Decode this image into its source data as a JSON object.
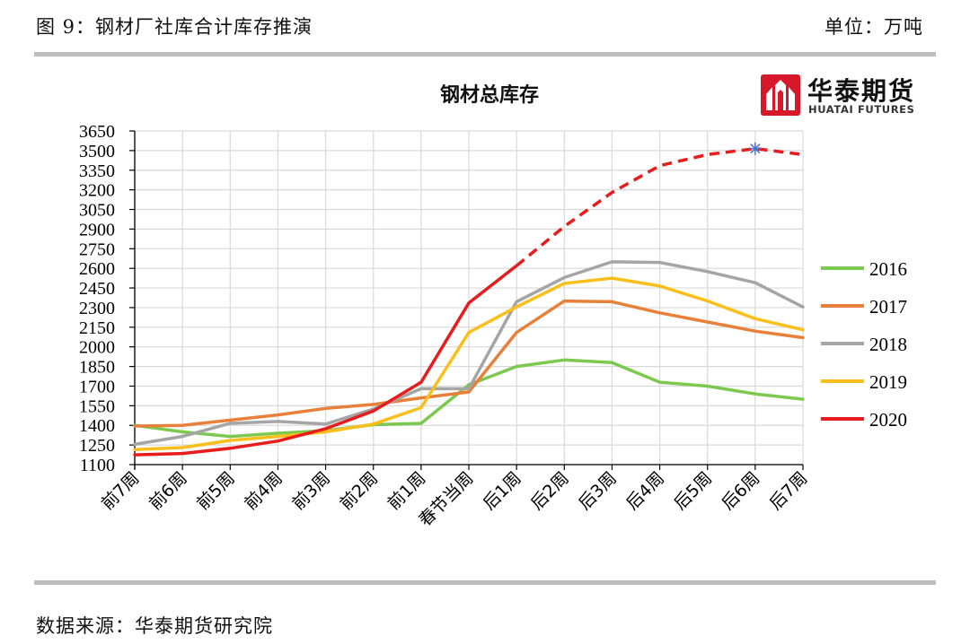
{
  "header": {
    "figure_title": "图 9：钢材厂社库合计库存推演",
    "unit": "单位：万吨"
  },
  "footer": {
    "source": "数据来源：华泰期货研究院"
  },
  "logo": {
    "name_cn": "华泰期货",
    "name_en": "HUATAI FUTURES"
  },
  "colors": {
    "2016": "#7cc94f",
    "2017": "#e8803a",
    "2018": "#a5a5a5",
    "2019": "#fbbf1b",
    "2020": "#e81c1c",
    "grid": "#d9d9d9",
    "logo_red": "#d7182a"
  },
  "chart_data": {
    "type": "line",
    "title": "钢材总库存",
    "xlabel": "",
    "ylabel": "",
    "ylim": [
      1100,
      3650
    ],
    "yticks": [
      1100,
      1250,
      1400,
      1550,
      1700,
      1850,
      2000,
      2150,
      2300,
      2450,
      2600,
      2750,
      2900,
      3050,
      3200,
      3350,
      3500,
      3650
    ],
    "grid": true,
    "legend_position": "right",
    "categories": [
      "前7周",
      "前6周",
      "前5周",
      "前4周",
      "前3周",
      "前2周",
      "前1周",
      "春节当周",
      "后1周",
      "后2周",
      "后3周",
      "后4周",
      "后5周",
      "后6周",
      "后7周"
    ],
    "series": [
      {
        "name": "2016",
        "values": [
          1400,
          1350,
          1315,
          1340,
          1360,
          1405,
          1415,
          1710,
          1850,
          1900,
          1880,
          1730,
          1700,
          1640,
          1600
        ]
      },
      {
        "name": "2017",
        "values": [
          1395,
          1400,
          1440,
          1480,
          1530,
          1560,
          1610,
          1655,
          2110,
          2350,
          2345,
          2260,
          2190,
          2120,
          2070
        ]
      },
      {
        "name": "2018",
        "values": [
          1255,
          1315,
          1415,
          1430,
          1410,
          1525,
          1680,
          1680,
          2345,
          2530,
          2650,
          2645,
          2575,
          2490,
          2305
        ]
      },
      {
        "name": "2019",
        "values": [
          1215,
          1230,
          1285,
          1315,
          1350,
          1410,
          1535,
          2110,
          2305,
          2485,
          2525,
          2465,
          2350,
          2215,
          2130
        ]
      },
      {
        "name": "2020",
        "values": [
          1175,
          1185,
          1225,
          1280,
          1375,
          1510,
          1730,
          2335,
          2620,
          2920,
          3180,
          3385,
          3470,
          3515,
          3470
        ],
        "solid_until_index": 8,
        "marker_index": 13
      }
    ]
  }
}
